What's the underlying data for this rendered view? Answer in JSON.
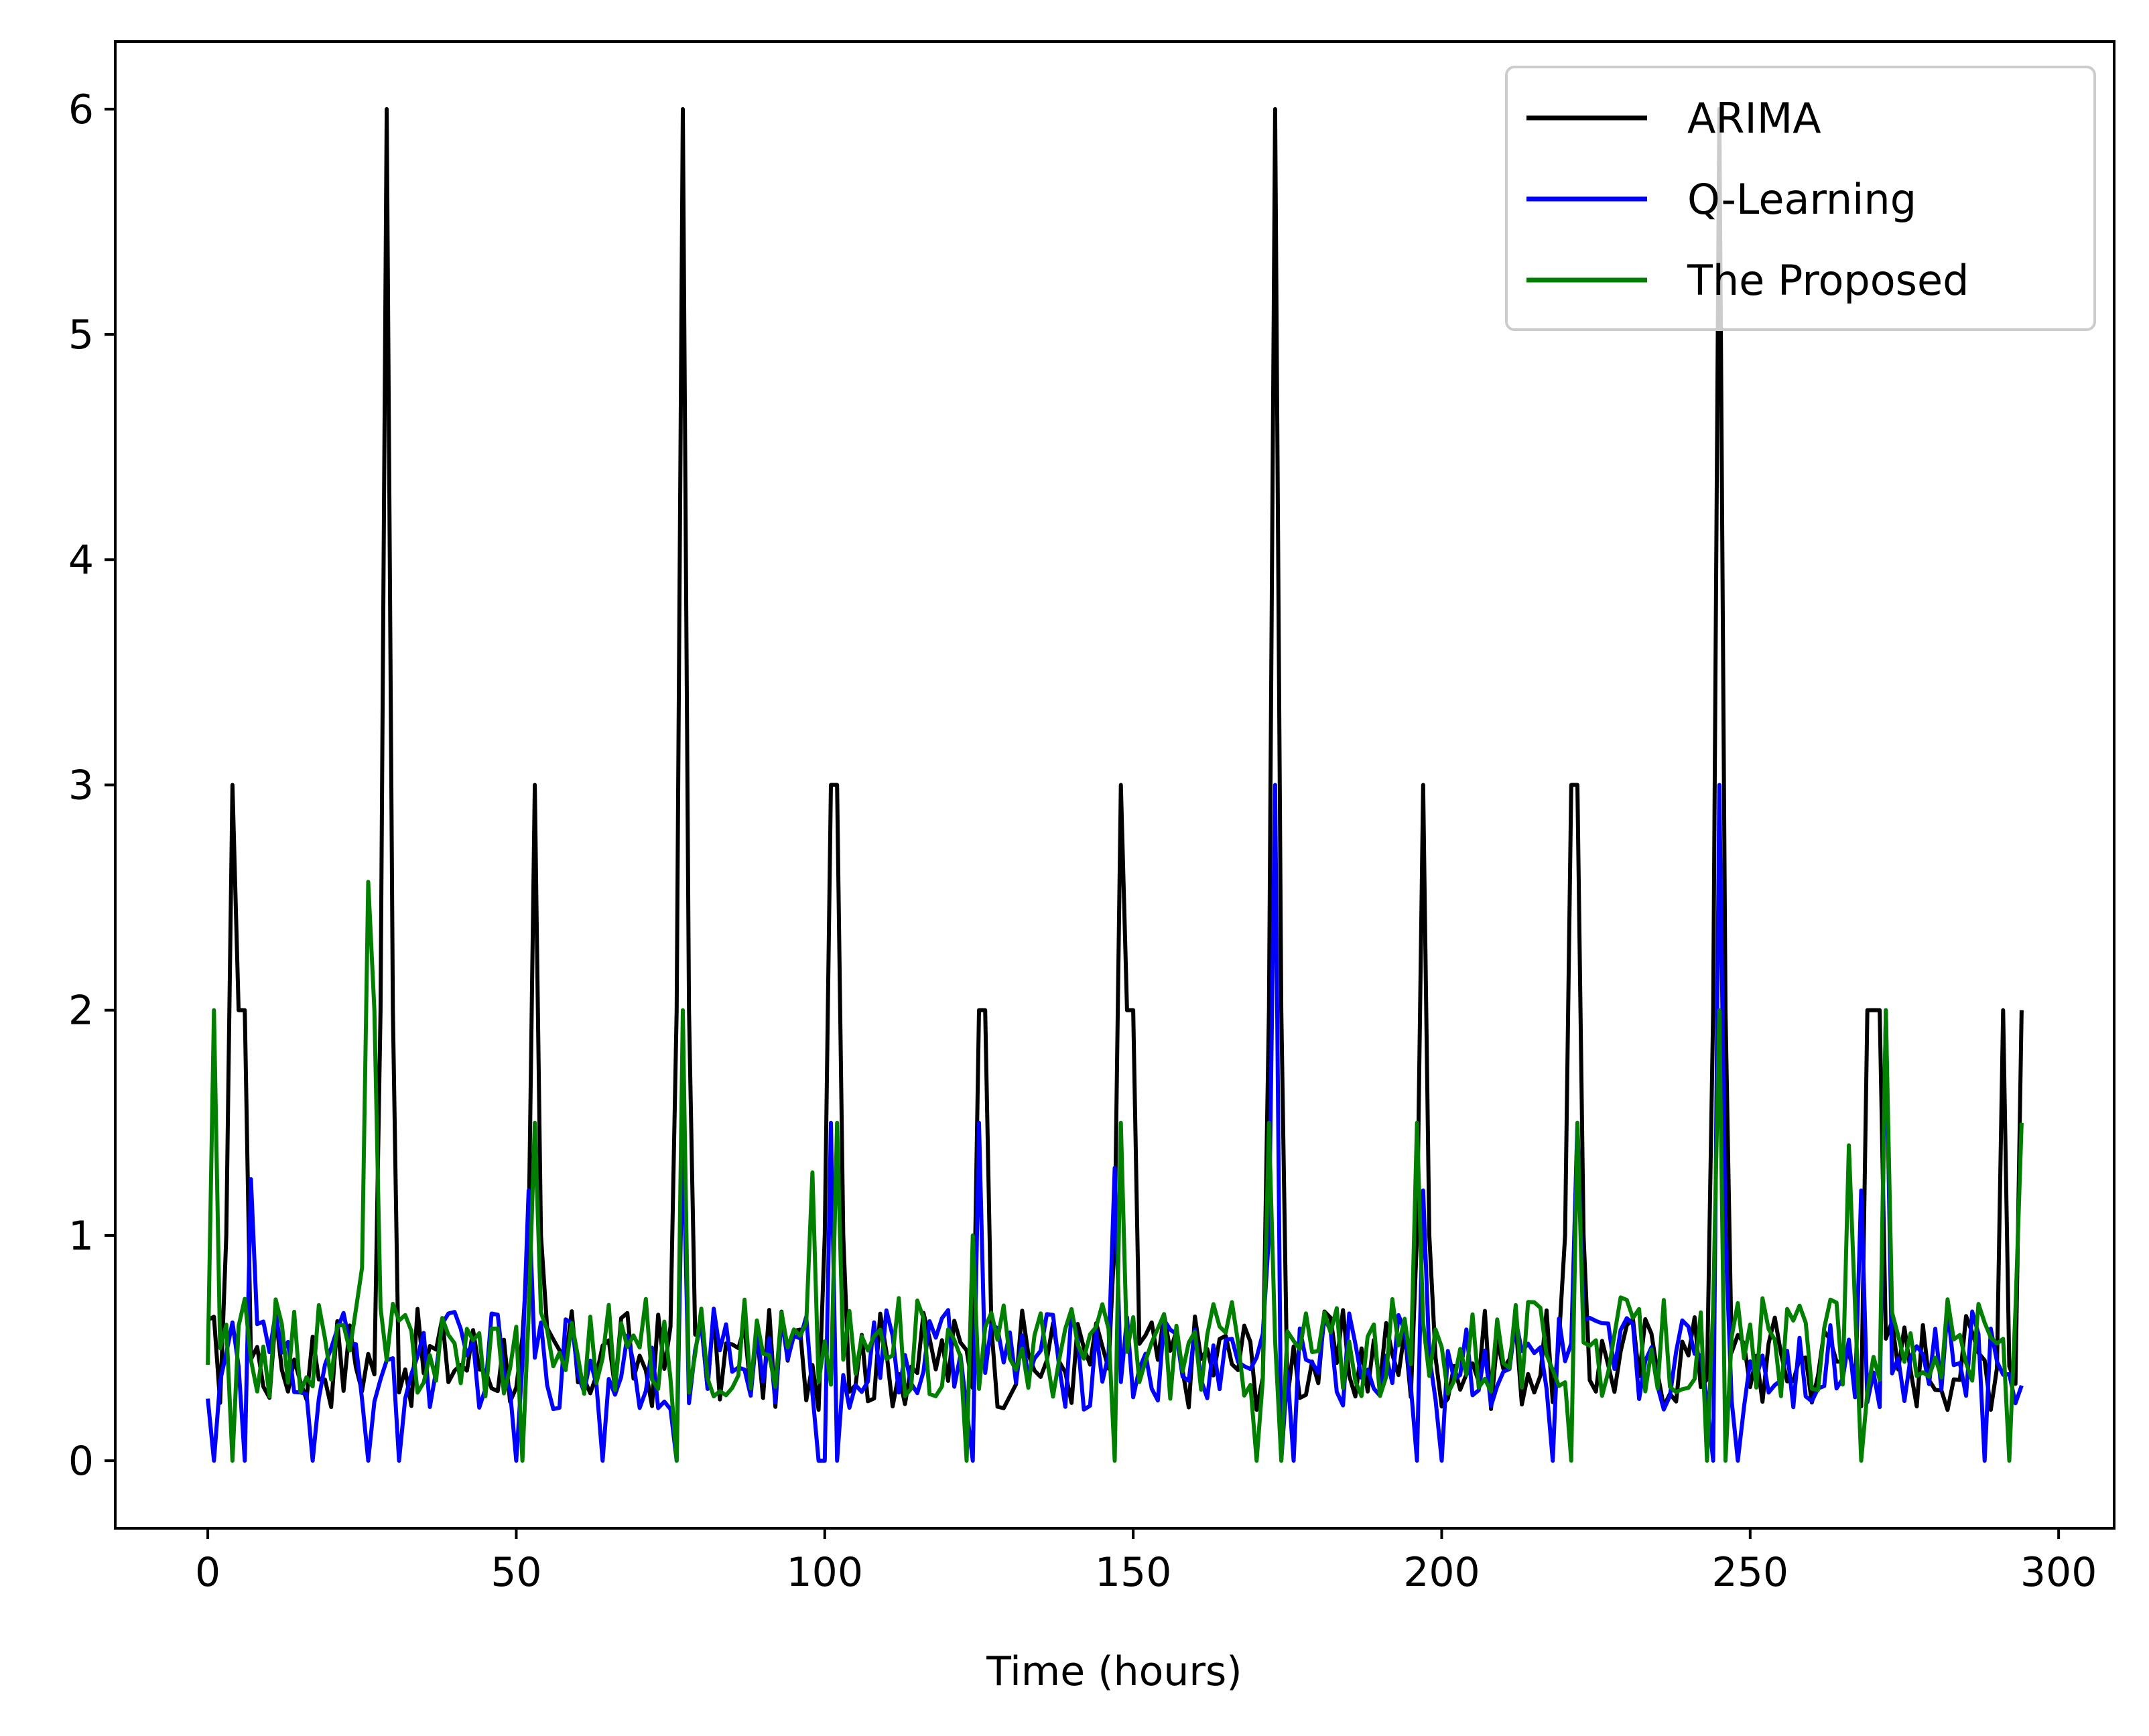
{
  "chart_data": {
    "type": "line",
    "title": "",
    "xlabel": "Time (hours)",
    "ylabel": "",
    "xlim": [
      -15,
      309
    ],
    "ylim": [
      -0.3,
      6.3
    ],
    "xticks": [
      0,
      50,
      100,
      150,
      200,
      250,
      300
    ],
    "yticks": [
      0,
      1,
      2,
      3,
      4,
      5,
      6
    ],
    "grid": false,
    "legend_position": "top-right",
    "series": [
      {
        "name": "ARIMA",
        "color": "#000000",
        "spikes": [
          [
            4,
            3
          ],
          [
            5,
            2
          ],
          [
            6,
            2
          ],
          [
            29,
            6
          ],
          [
            53,
            3
          ],
          [
            76,
            2
          ],
          [
            77,
            6
          ],
          [
            101,
            3
          ],
          [
            102,
            3
          ],
          [
            125,
            2
          ],
          [
            126,
            2
          ],
          [
            148,
            3
          ],
          [
            149,
            2
          ],
          [
            150,
            2
          ],
          [
            173,
            6
          ],
          [
            197,
            3
          ],
          [
            221,
            3
          ],
          [
            222,
            3
          ],
          [
            245,
            6
          ],
          [
            269,
            2
          ],
          [
            270,
            2
          ],
          [
            271,
            2
          ],
          [
            291,
            2
          ],
          [
            294,
            2
          ]
        ],
        "base": 0.45
      },
      {
        "name": "Q-Learning",
        "color": "#0000ff",
        "spikes": [
          [
            7,
            1.25
          ],
          [
            52,
            1.2
          ],
          [
            77,
            1.5
          ],
          [
            101,
            1.5
          ],
          [
            125,
            1.5
          ],
          [
            147,
            1.3
          ],
          [
            173,
            3
          ],
          [
            197,
            1.2
          ],
          [
            222,
            1.5
          ],
          [
            245,
            3
          ],
          [
            268,
            1.2
          ],
          [
            272,
            2
          ]
        ],
        "drops": [
          1,
          6,
          17,
          26,
          31,
          50,
          52,
          64,
          76,
          99,
          100,
          102,
          124,
          147,
          174,
          176,
          196,
          200,
          218,
          244,
          248,
          268,
          288
        ],
        "base": 0.45
      },
      {
        "name": "The Proposed",
        "color": "#007f00",
        "spikes": [
          [
            1,
            2
          ],
          [
            26,
            2.57
          ],
          [
            27,
            2
          ],
          [
            53,
            1.5
          ],
          [
            77,
            2
          ],
          [
            98,
            1.28
          ],
          [
            102,
            1.5
          ],
          [
            124,
            1.0
          ],
          [
            148,
            1.5
          ],
          [
            172,
            1.5
          ],
          [
            196,
            1.5
          ],
          [
            222,
            1.5
          ],
          [
            245,
            2
          ],
          [
            266,
            1.4
          ],
          [
            272,
            2
          ],
          [
            294,
            1.5
          ]
        ],
        "drops": [
          4,
          27,
          51,
          76,
          102,
          123,
          147,
          170,
          174,
          196,
          221,
          243,
          246,
          268,
          292
        ],
        "base": 0.5
      }
    ]
  }
}
